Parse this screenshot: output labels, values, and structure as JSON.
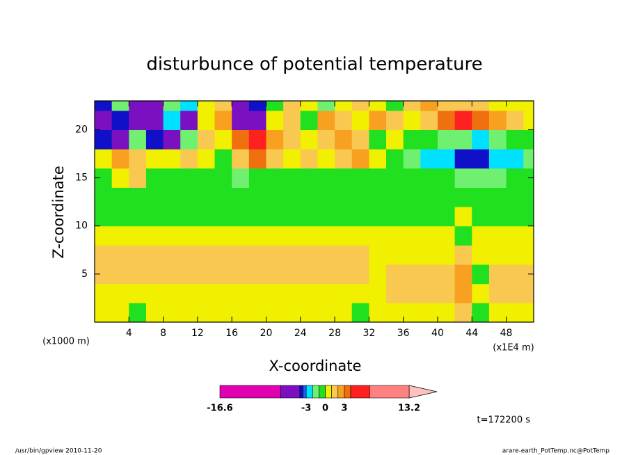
{
  "chart_data": {
    "type": "contour",
    "title": "disturbunce of potential temperature",
    "xlabel": "X-coordinate",
    "ylabel": "Z-coordinate",
    "x_unit_label": "(x1E4 m)",
    "y_unit_label": "(x1000 m)",
    "time_label": "t=172200 s",
    "footer_left": "/usr/bin/gpview  2010-11-20",
    "footer_right": "arare-earth_PotTemp.nc@PotTemp",
    "xlim": [
      0,
      51.2
    ],
    "ylim": [
      0,
      23
    ],
    "xticks": [
      4,
      8,
      12,
      16,
      20,
      24,
      28,
      32,
      36,
      40,
      44,
      48
    ],
    "yticks": [
      5,
      10,
      15,
      20
    ],
    "x": [
      1,
      3,
      5,
      7,
      9,
      11,
      13,
      15,
      17,
      19,
      21,
      23,
      25,
      27,
      29,
      31,
      33,
      35,
      37,
      39,
      41,
      43,
      45,
      47,
      49,
      51
    ],
    "z": [
      1,
      3,
      5,
      7,
      9,
      11,
      13,
      15,
      17,
      19,
      21,
      23
    ],
    "values": [
      [
        0.5,
        0.5,
        -0.5,
        0.5,
        0.5,
        0.5,
        0.5,
        0.5,
        0.5,
        0.5,
        0.5,
        0.5,
        0.5,
        0.5,
        0.5,
        -0.5,
        0.5,
        0.5,
        0.5,
        0.5,
        0.5,
        1.5,
        -0.5,
        0.5,
        0.5,
        0.5
      ],
      [
        0.5,
        0.5,
        0.5,
        0.5,
        0.5,
        0.5,
        0.5,
        0.5,
        0.5,
        0.5,
        0.5,
        0.5,
        0.5,
        0.5,
        0.5,
        0.5,
        0.5,
        1.5,
        1.5,
        1.5,
        1.5,
        2.5,
        0.5,
        1.5,
        1.5,
        1.5
      ],
      [
        1.5,
        1.5,
        1.5,
        1.5,
        1.5,
        1.5,
        1.5,
        1.5,
        1.5,
        1.5,
        1.5,
        1.5,
        1.5,
        1.5,
        1.5,
        1.5,
        0.5,
        1.5,
        1.5,
        1.5,
        1.5,
        2.5,
        -0.5,
        1.5,
        1.5,
        1.5
      ],
      [
        1.5,
        1.5,
        1.5,
        1.5,
        1.5,
        1.5,
        1.5,
        1.5,
        1.5,
        1.5,
        1.5,
        1.5,
        1.5,
        1.5,
        1.5,
        1.5,
        0.5,
        0.5,
        0.5,
        0.5,
        0.5,
        1.5,
        0.5,
        0.5,
        0.5,
        0.5
      ],
      [
        0.5,
        0.5,
        0.5,
        0.5,
        0.5,
        0.5,
        0.5,
        0.5,
        0.5,
        0.5,
        0.5,
        0.5,
        0.5,
        0.5,
        0.5,
        0.5,
        0.5,
        0.5,
        0.5,
        0.5,
        0.5,
        -0.5,
        0.5,
        0.5,
        0.5,
        0.5
      ],
      [
        -0.5,
        -0.5,
        -0.5,
        -0.5,
        -0.5,
        -0.5,
        -0.5,
        -0.5,
        -0.5,
        -0.5,
        -0.5,
        -0.5,
        -0.5,
        -0.5,
        -0.5,
        -0.5,
        -0.5,
        -0.5,
        -0.5,
        -0.5,
        -0.5,
        0.5,
        -0.5,
        -0.5,
        -0.5,
        -0.5
      ],
      [
        -0.5,
        -0.5,
        -0.5,
        -0.5,
        -0.5,
        -0.5,
        -0.5,
        -0.5,
        -0.5,
        -0.5,
        -0.5,
        -0.5,
        -0.5,
        -0.5,
        -0.5,
        -0.5,
        -0.5,
        -0.5,
        -0.5,
        -0.5,
        -0.5,
        -0.5,
        -0.5,
        -0.5,
        -0.5,
        -0.5
      ],
      [
        -0.5,
        0.5,
        1.5,
        -0.5,
        -0.5,
        -0.5,
        -0.5,
        -0.5,
        -1.5,
        -0.5,
        -0.5,
        -0.5,
        -0.5,
        -0.5,
        -0.5,
        -0.5,
        -0.5,
        -0.5,
        -0.5,
        -0.5,
        -0.5,
        -1.5,
        -1.5,
        -1.5,
        -0.5,
        -0.5
      ],
      [
        0.5,
        2.5,
        1.5,
        0.5,
        0.5,
        1.5,
        0.5,
        -0.5,
        1.5,
        3.5,
        1.5,
        0.5,
        1.5,
        0.5,
        1.5,
        2.5,
        0.5,
        -0.5,
        -1.5,
        -2.5,
        -2.5,
        -3.7,
        -3.7,
        -2.5,
        -2.5,
        -1.5
      ],
      [
        -3.7,
        -4.5,
        -1.5,
        -3.7,
        -5.5,
        -1.5,
        1.5,
        0.5,
        3.5,
        4.5,
        2.5,
        1.5,
        0.5,
        1.5,
        2.5,
        1.5,
        -0.5,
        0.5,
        -0.5,
        -0.5,
        -1.5,
        -1.5,
        -2.5,
        -1.5,
        -0.5,
        -0.5
      ],
      [
        -4.5,
        -3.7,
        -5.5,
        -6,
        -2.5,
        -4.5,
        0.5,
        2.5,
        -5.5,
        -6,
        0.5,
        1.5,
        -0.5,
        2.5,
        1.5,
        0.5,
        2.5,
        1.5,
        0.5,
        1.5,
        3.5,
        4.5,
        3.5,
        2.5,
        1.5,
        0.5
      ],
      [
        -3.7,
        -1.5,
        -5.5,
        -4.5,
        -1.5,
        -2.5,
        0.5,
        1.5,
        -4.5,
        -3.7,
        -0.5,
        1.5,
        0.5,
        -1.5,
        0.5,
        1.5,
        0.5,
        -0.5,
        1.5,
        2.5,
        1.5,
        1.5,
        1.5,
        0.5,
        0.5,
        0.5
      ]
    ],
    "colorbar": {
      "levels": [
        -16.6,
        -7,
        -4,
        -3.5,
        -3,
        -2,
        -1,
        0,
        1,
        2,
        3,
        4,
        7,
        13.2
      ],
      "colors": [
        "#e000b0",
        "#7a10c0",
        "#1010c8",
        "#2060ff",
        "#00e0ff",
        "#70f070",
        "#20e020",
        "#f0f000",
        "#f8c850",
        "#f8a020",
        "#f07010",
        "#ff2020",
        "#ff8080"
      ],
      "ticks": [
        -16.6,
        -3,
        0,
        3,
        13.2
      ]
    }
  }
}
